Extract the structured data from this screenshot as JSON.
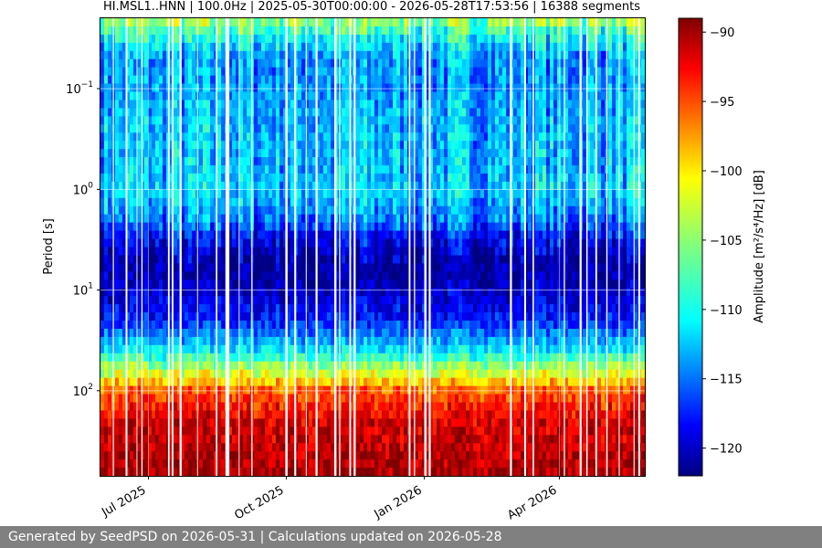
{
  "chart_data": {
    "type": "heatmap",
    "title": "HI.MSL1..HNN | 100.0Hz | 2025-05-30T00:00:00 - 2026-05-28T17:53:56 | 16388 segments",
    "ylabel": "Period [s]",
    "y_scale": "log",
    "y_direction": "increasing-downward",
    "ylim": [
      0.02,
      700
    ],
    "y_ticks": [
      {
        "value": 0.1,
        "base": "10",
        "exp": "−1"
      },
      {
        "value": 1,
        "base": "10",
        "exp": "0"
      },
      {
        "value": 10,
        "base": "10",
        "exp": "1"
      },
      {
        "value": 100,
        "base": "10",
        "exp": "2"
      }
    ],
    "x_scale": "date",
    "xlim": [
      "2025-05-30",
      "2026-05-28"
    ],
    "x_ticks": [
      {
        "value": "2025-07-01",
        "label": "Jul 2025"
      },
      {
        "value": "2025-10-01",
        "label": "Oct 2025"
      },
      {
        "value": "2026-01-01",
        "label": "Jan 2026"
      },
      {
        "value": "2026-04-01",
        "label": "Apr 2026"
      }
    ],
    "grid": true,
    "colormap": "jet",
    "colorbar": {
      "label": "Amplitude [m²/s⁴/Hz] [dB]",
      "range": [
        -122,
        -89
      ],
      "ticks": [
        {
          "value": -90,
          "label": "−90"
        },
        {
          "value": -95,
          "label": "−95"
        },
        {
          "value": -100,
          "label": "−100"
        },
        {
          "value": -105,
          "label": "−105"
        },
        {
          "value": -110,
          "label": "−110"
        },
        {
          "value": -115,
          "label": "−115"
        },
        {
          "value": -120,
          "label": "−120"
        }
      ]
    },
    "amplitude_profile": {
      "period_s": [
        0.02,
        0.03,
        0.05,
        0.1,
        0.2,
        0.5,
        1,
        2,
        3,
        5,
        10,
        20,
        40,
        70,
        100,
        200,
        700
      ],
      "amplitude_db": [
        -104,
        -109,
        -113,
        -113,
        -112,
        -112,
        -111,
        -114,
        -118,
        -121,
        -120,
        -117,
        -110,
        -102,
        -96,
        -92,
        -90
      ]
    }
  },
  "footer": {
    "text": "Generated by SeedPSD on 2026-05-31 | Calculations updated on 2026-05-28"
  }
}
